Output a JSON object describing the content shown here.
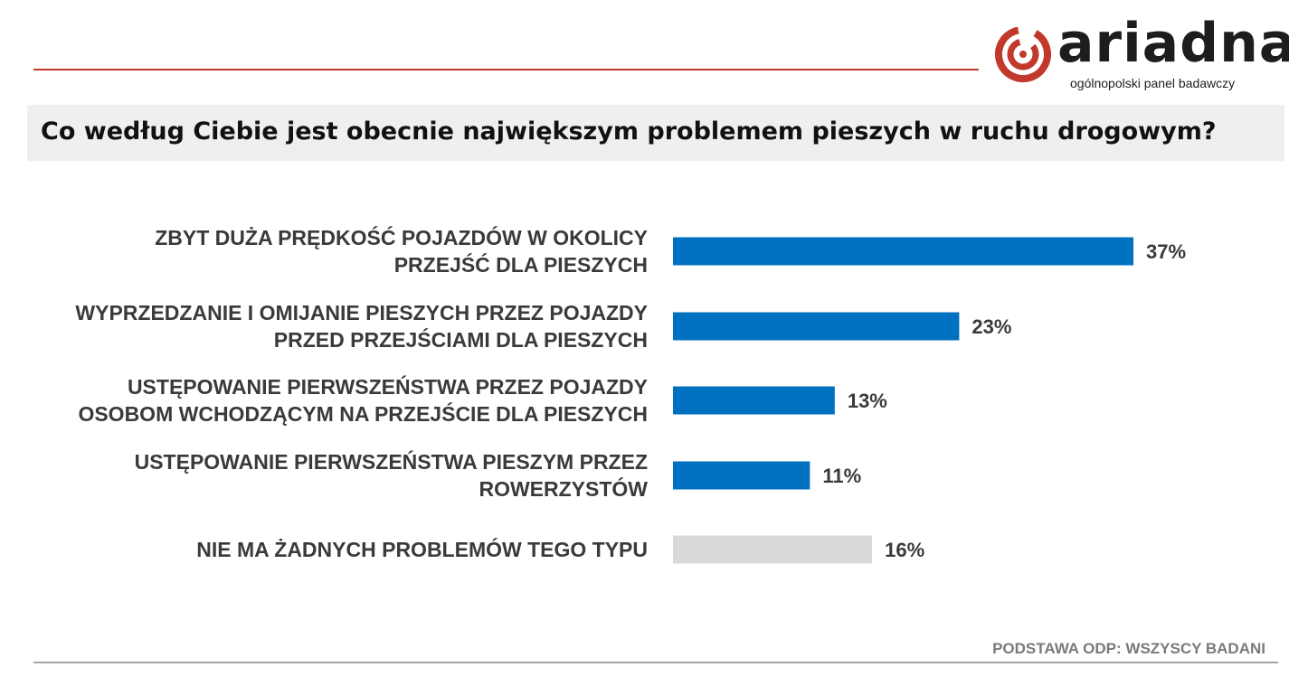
{
  "logo": {
    "word": "ariadna",
    "tagline": "ogólnopolski panel badawczy",
    "brand_color": "#c0392b"
  },
  "title": "Co według Ciebie jest obecnie największym problemem pieszych w ruchu drogowym?",
  "footnote": "PODSTAWA ODP: WSZYSCY BADANI",
  "chart_data": {
    "type": "bar",
    "orientation": "horizontal",
    "categories": [
      [
        "ZBYT DUŻA PRĘDKOŚĆ POJAZDÓW W OKOLICY",
        "PRZEJŚĆ DLA PIESZYCH"
      ],
      [
        "WYPRZEDZANIE I OMIJANIE PIESZYCH PRZEZ POJAZDY",
        "PRZED PRZEJŚCIAMI DLA PIESZYCH"
      ],
      [
        "USTĘPOWANIE PIERWSZEŃSTWA PRZEZ POJAZDY",
        "OSOBOM WCHODZĄCYM NA PRZEJŚCIE DLA PIESZYCH"
      ],
      [
        "USTĘPOWANIE PIERWSZEŃSTWA PIESZYM PRZEZ",
        "ROWERZYSTÓW"
      ],
      [
        "NIE MA ŻADNYCH PROBLEMÓW TEGO TYPU"
      ]
    ],
    "values": [
      37,
      23,
      13,
      11,
      16
    ],
    "value_labels": [
      "37%",
      "23%",
      "13%",
      "11%",
      "16%"
    ],
    "colors": [
      "#0070c0",
      "#0070c0",
      "#0070c0",
      "#0070c0",
      "#d9d9d9"
    ],
    "xlim": [
      0,
      37
    ],
    "grid": false,
    "legend": "none"
  }
}
